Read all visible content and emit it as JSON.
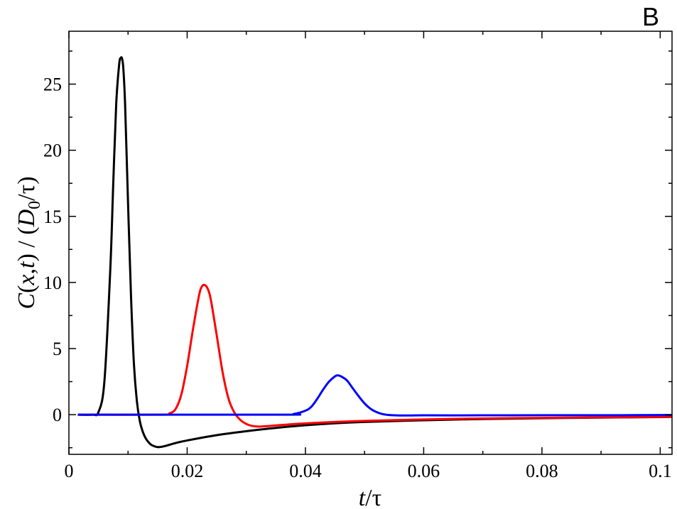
{
  "chart_data": {
    "type": "line",
    "panel_label": "B",
    "xlabel": "t/τ",
    "ylabel": "C(x,t) / (D0/τ)",
    "xlim": [
      0,
      0.102
    ],
    "ylim": [
      -3,
      29
    ],
    "x_ticks": [
      0,
      0.02,
      0.04,
      0.06,
      0.08,
      0.1
    ],
    "x_tick_labels": [
      "0",
      "0.02",
      "0.04",
      "0.06",
      "0.08",
      "0.1"
    ],
    "y_ticks": [
      0,
      5,
      10,
      15,
      20,
      25
    ],
    "y_tick_labels": [
      "0",
      "5",
      "10",
      "15",
      "20",
      "25"
    ],
    "grid": false,
    "legend": false,
    "series": [
      {
        "color": "#000000",
        "x": [
          0.0015,
          0.004,
          0.005,
          0.006,
          0.007,
          0.0075,
          0.008,
          0.0085,
          0.0088,
          0.009,
          0.0092,
          0.0095,
          0.01,
          0.0105,
          0.011,
          0.0115,
          0.012,
          0.0125,
          0.013,
          0.0135,
          0.014,
          0.015,
          0.016,
          0.018,
          0.02,
          0.025,
          0.03,
          0.035,
          0.04,
          0.045,
          0.05,
          0.06,
          0.07,
          0.08,
          0.09,
          0.1,
          0.102
        ],
        "y": [
          0,
          0,
          0.2,
          2.5,
          11,
          17.5,
          23.5,
          26.5,
          27.0,
          26.9,
          26.2,
          23.5,
          16,
          9,
          3.8,
          1.0,
          -0.5,
          -1.3,
          -1.8,
          -2.1,
          -2.3,
          -2.45,
          -2.4,
          -2.15,
          -1.95,
          -1.55,
          -1.25,
          -1.0,
          -0.8,
          -0.65,
          -0.55,
          -0.42,
          -0.33,
          -0.27,
          -0.22,
          -0.18,
          -0.17
        ]
      },
      {
        "color": "#ff0000",
        "x": [
          0.0015,
          0.016,
          0.017,
          0.018,
          0.019,
          0.02,
          0.021,
          0.022,
          0.0225,
          0.023,
          0.0235,
          0.024,
          0.025,
          0.026,
          0.027,
          0.028,
          0.029,
          0.03,
          0.031,
          0.032,
          0.034,
          0.036,
          0.04,
          0.045,
          0.05,
          0.06,
          0.07,
          0.08,
          0.09,
          0.1,
          0.102
        ],
        "y": [
          0,
          0,
          0.1,
          0.4,
          1.5,
          3.7,
          6.5,
          9.0,
          9.7,
          9.8,
          9.5,
          8.7,
          6.0,
          3.2,
          1.2,
          0.15,
          -0.4,
          -0.7,
          -0.85,
          -0.9,
          -0.85,
          -0.78,
          -0.66,
          -0.55,
          -0.47,
          -0.36,
          -0.29,
          -0.24,
          -0.2,
          -0.17,
          -0.16
        ]
      },
      {
        "color": "#0000ff",
        "x": [
          0.0015,
          0.036,
          0.038,
          0.04,
          0.041,
          0.042,
          0.043,
          0.044,
          0.045,
          0.0455,
          0.046,
          0.047,
          0.048,
          0.049,
          0.05,
          0.051,
          0.052,
          0.053,
          0.054,
          0.055,
          0.056,
          0.058,
          0.06,
          0.07,
          0.08,
          0.09,
          0.1,
          0.102
        ],
        "y": [
          0,
          0,
          0.05,
          0.3,
          0.6,
          1.2,
          1.9,
          2.5,
          2.9,
          2.97,
          2.9,
          2.6,
          2.0,
          1.4,
          0.85,
          0.45,
          0.2,
          0.05,
          -0.02,
          -0.05,
          -0.06,
          -0.06,
          -0.05,
          -0.05,
          -0.04,
          -0.04,
          -0.03,
          -0.03
        ]
      }
    ]
  }
}
